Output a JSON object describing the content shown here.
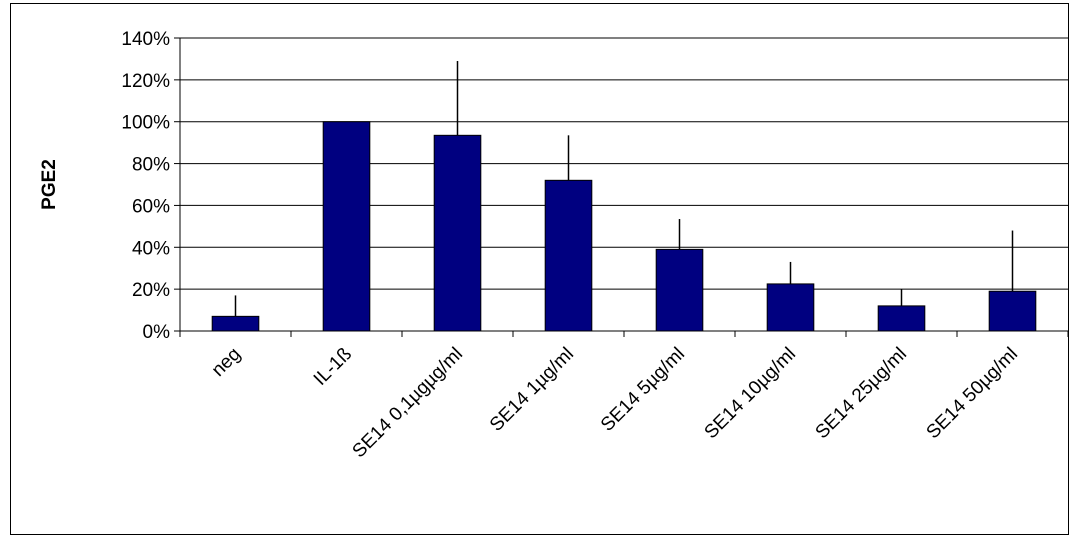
{
  "chart_data": {
    "type": "bar",
    "title": "",
    "xlabel": "",
    "ylabel": "PGE2",
    "categories": [
      "neg",
      "IL-1ß",
      "SE14  0,1µgµg/ml",
      "SE14  1µg/ml",
      "SE14  5µg/ml",
      "SE14  10µg/ml",
      "SE14  25µg/ml",
      "SE14  50µg/ml"
    ],
    "series": [
      {
        "values": [
          0.07,
          1.0,
          0.935,
          0.72,
          0.39,
          0.225,
          0.12,
          0.19
        ],
        "error_plus": [
          0.1,
          0.0,
          0.355,
          0.215,
          0.145,
          0.105,
          0.08,
          0.29
        ],
        "color": "#000080"
      }
    ],
    "ylim": [
      0,
      1.4
    ],
    "yticks": [
      0,
      0.2,
      0.4,
      0.6,
      0.8,
      1.0,
      1.2,
      1.4
    ],
    "ytick_labels": [
      "0%",
      "20%",
      "40%",
      "60%",
      "80%",
      "100%",
      "120%",
      "140%"
    ],
    "grid": true,
    "legend": "none"
  }
}
